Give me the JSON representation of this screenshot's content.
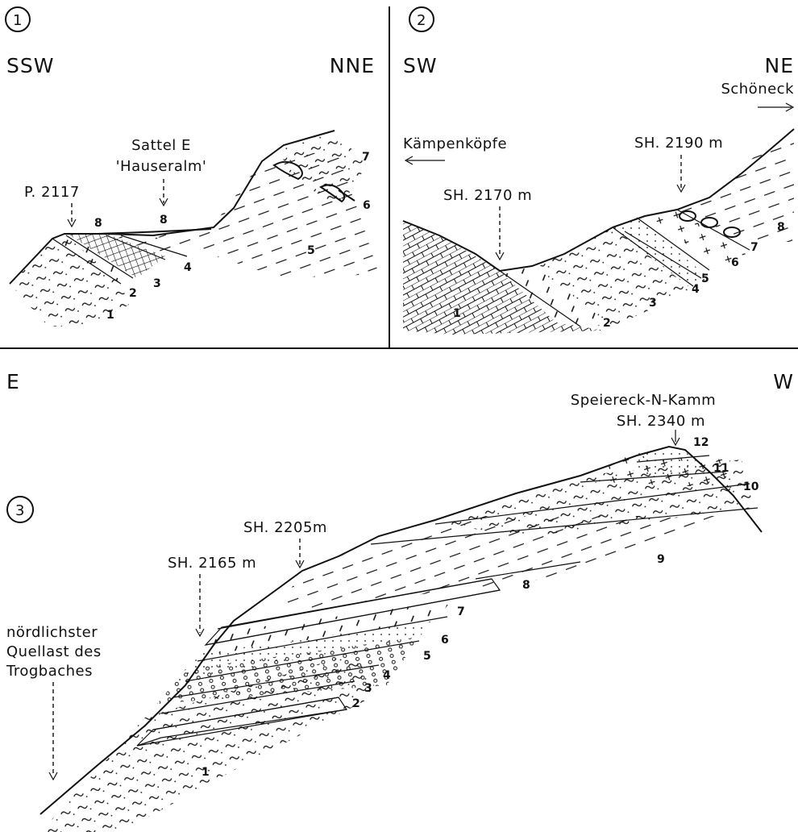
{
  "panel1": {
    "number": "1",
    "left_dir": "SSW",
    "right_dir": "NNE",
    "peak_label": "P. 2117",
    "saddle_line1": "Sattel E",
    "saddle_line2": "'Hauseralm'",
    "units": [
      "1",
      "2",
      "3",
      "4",
      "5",
      "6",
      "7",
      "8",
      "8"
    ]
  },
  "panel2": {
    "number": "2",
    "left_dir": "SW",
    "right_dir": "NE",
    "right_place": "Schöneck",
    "left_place": "Kämpenköpfe",
    "label_a": "SH. 2170 m",
    "label_b": "SH. 2190 m",
    "units": [
      "1",
      "2",
      "3",
      "4",
      "5",
      "6",
      "7",
      "8"
    ]
  },
  "panel3": {
    "number": "3",
    "left_dir": "E",
    "right_dir": "W",
    "ridge_line1": "Speiereck-N-Kamm",
    "ridge_line2": "SH. 2340 m",
    "label_2205": "SH. 2205m",
    "label_2165": "SH. 2165 m",
    "spring_line1": "nördlichster",
    "spring_line2": "Quellast des",
    "spring_line3": "Trogbaches",
    "units": [
      "1",
      "2",
      "3",
      "4",
      "5",
      "6",
      "7",
      "8",
      "9",
      "10",
      "11",
      "12"
    ]
  }
}
